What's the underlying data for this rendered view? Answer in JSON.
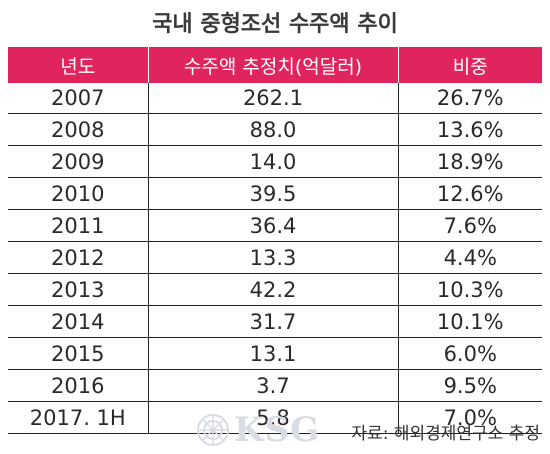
{
  "title": "국내 중형조선 수주액 추이",
  "table": {
    "headers": [
      "년도",
      "수주액 추정치(억달러)",
      "비중"
    ],
    "rows": [
      [
        "2007",
        "262.1",
        "26.7%"
      ],
      [
        "2008",
        "88.0",
        "13.6%"
      ],
      [
        "2009",
        "14.0",
        "18.9%"
      ],
      [
        "2010",
        "39.5",
        "12.6%"
      ],
      [
        "2011",
        "36.4",
        "7.6%"
      ],
      [
        "2012",
        "13.3",
        "4.4%"
      ],
      [
        "2013",
        "42.2",
        "10.3%"
      ],
      [
        "2014",
        "31.7",
        "10.1%"
      ],
      [
        "2015",
        "13.1",
        "6.0%"
      ],
      [
        "2016",
        "3.7",
        "9.5%"
      ],
      [
        "2017. 1H",
        "5.8",
        "7.0%"
      ]
    ]
  },
  "watermark": {
    "text": "KSG",
    "icon": "ship-wheel-seal-icon"
  },
  "source": "자료: 해외경제연구소 추정",
  "colors": {
    "header_bg": "#e0245e",
    "header_text": "#ffffff",
    "watermark": "#d8dde3"
  }
}
